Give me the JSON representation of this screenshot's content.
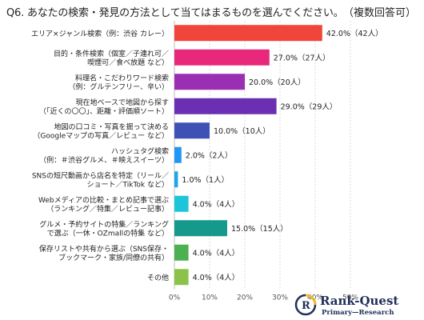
{
  "header": {
    "title": "Q6. あなたの検索・発見の方法として当てはまるものを選んでください。",
    "note": "（複数回答可）"
  },
  "logo": {
    "name": "Rank-Quest",
    "sub": "Primary—Research"
  },
  "chart_data": {
    "type": "bar",
    "orientation": "horizontal",
    "categories": [
      [
        "エリア×ジャンル検索（例：渋谷 カレー）"
      ],
      [
        "目的・条件検索（個室／子連れ可／",
        "喫煙可／食べ放題 など）"
      ],
      [
        "料理名・こだわりワード検索",
        "（例：グルテンフリー、辛い）"
      ],
      [
        "現在地ベースで地図から探す",
        "（「近くの〇〇」、距離・評価順ソート）"
      ],
      [
        "地図の口コミ・写真を掘って決める",
        "（Googleマップの写真／レビュー など）"
      ],
      [
        "ハッシュタグ検索",
        "（例：＃渋谷グルメ、＃映えスイーツ）"
      ],
      [
        "SNSの短尺動画から店名を特定（リール／",
        "ショート／TikTok など）"
      ],
      [
        "Webメディアの比較・まとめ記事で選ぶ",
        "（ランキング／特集／レビュー記事）"
      ],
      [
        "グルメ・予約サイトの特集／ランキング",
        "で選ぶ（一休・OZmallの特集 など）"
      ],
      [
        "保存リストや共有から選ぶ（SNS保存・",
        "ブックマーク・家族/同僚の共有）"
      ],
      [
        "その他"
      ]
    ],
    "values": [
      42.0,
      27.0,
      20.0,
      29.0,
      10.0,
      2.0,
      1.0,
      4.0,
      15.0,
      4.0,
      4.0
    ],
    "data_labels": [
      "42.0%（42人）",
      "27.0%（27人）",
      "20.0%（20人）",
      "29.0%（29人）",
      "10.0%（10人）",
      "2.0%（2人）",
      "1.0%（1人）",
      "4.0%（4人）",
      "15.0%（15人）",
      "4.0%（4人）",
      "4.0%（4人）"
    ],
    "colors": [
      "#f0453a",
      "#e8287a",
      "#9a2fb4",
      "#6a2fb2",
      "#3f51b5",
      "#2196f3",
      "#1aa6e8",
      "#1cc6d8",
      "#14998a",
      "#4caf50",
      "#8bc34a"
    ],
    "xlim": [
      0,
      50
    ],
    "xticks": [
      "0%",
      "10%",
      "20%",
      "30%",
      "40%",
      "50%"
    ],
    "grid": true,
    "title": "",
    "xlabel": "",
    "ylabel": ""
  }
}
